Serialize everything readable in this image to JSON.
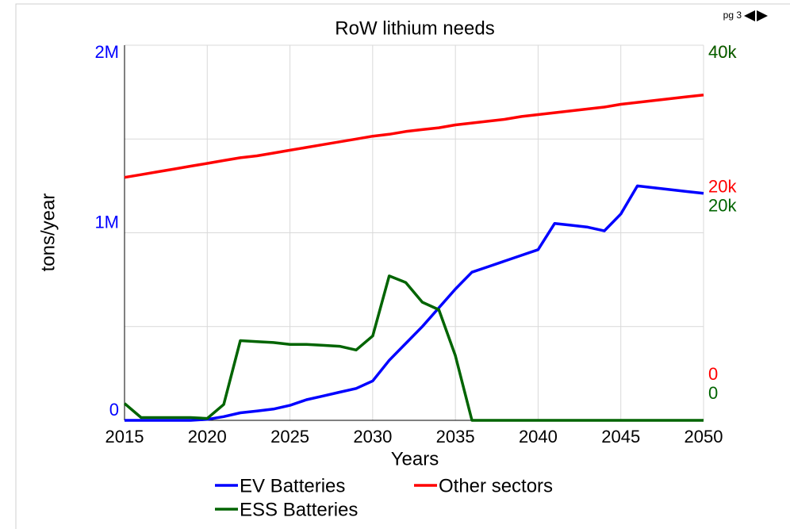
{
  "chart_data": {
    "type": "line",
    "title": "RoW lithium needs",
    "page_label": "pg 3",
    "xlabel": "Years",
    "ylabel": "tons/year",
    "x": [
      2015,
      2016,
      2017,
      2018,
      2019,
      2020,
      2021,
      2022,
      2023,
      2024,
      2025,
      2026,
      2027,
      2028,
      2029,
      2030,
      2031,
      2032,
      2033,
      2034,
      2035,
      2036,
      2037,
      2038,
      2039,
      2040,
      2041,
      2042,
      2043,
      2044,
      2045,
      2046,
      2047,
      2048,
      2049,
      2050
    ],
    "xlim": [
      2015,
      2050
    ],
    "xticks": [
      2015,
      2020,
      2025,
      2030,
      2035,
      2040,
      2045,
      2050
    ],
    "ylim": [
      0,
      2000000
    ],
    "yticks": [
      0,
      {
        "value": 1000000,
        "label": "1M"
      },
      {
        "value": 2000000,
        "label": "2M"
      }
    ],
    "ygrid": [
      0,
      500000,
      1000000,
      1500000,
      2000000
    ],
    "y2lim": [
      0,
      40000
    ],
    "y2ticks": [
      0,
      {
        "value": 20000,
        "label": "20k"
      },
      {
        "value": 40000,
        "label": "40k"
      }
    ],
    "y3lim": [
      0,
      40000
    ],
    "y3ticks": [
      0,
      {
        "value": 20000,
        "label": "20k"
      },
      {
        "value": 40000,
        "label": "40k"
      }
    ],
    "grid": true,
    "series": [
      {
        "name": "EV Batteries",
        "color": "#0000ff",
        "axis": "y",
        "values": [
          0,
          0,
          0,
          0,
          0,
          5000,
          20000,
          40000,
          50000,
          60000,
          80000,
          110000,
          130000,
          150000,
          170000,
          210000,
          320000,
          410000,
          500000,
          600000,
          700000,
          790000,
          820000,
          850000,
          880000,
          910000,
          1050000,
          1040000,
          1030000,
          1010000,
          1100000,
          1250000,
          1240000,
          1230000,
          1220000,
          1210000
        ]
      },
      {
        "name": "Other sectors",
        "color": "#ff0000",
        "axis": "y2",
        "values": [
          25900,
          26200,
          26500,
          26800,
          27100,
          27400,
          27700,
          28000,
          28200,
          28500,
          28800,
          29100,
          29400,
          29700,
          30000,
          30300,
          30500,
          30800,
          31000,
          31200,
          31500,
          31700,
          31900,
          32100,
          32400,
          32600,
          32800,
          33000,
          33200,
          33400,
          33700,
          33900,
          34100,
          34300,
          34500,
          34700
        ]
      },
      {
        "name": "ESS Batteries",
        "color": "#006400",
        "axis": "y3",
        "values": [
          1800,
          300,
          300,
          300,
          300,
          200,
          1700,
          8500,
          8400,
          8300,
          8100,
          8100,
          8000,
          7900,
          7500,
          9000,
          15400,
          14700,
          12600,
          11800,
          6900,
          0,
          0,
          0,
          0,
          0,
          0,
          0,
          0,
          0,
          0,
          0,
          0,
          0,
          0,
          0
        ]
      }
    ]
  }
}
